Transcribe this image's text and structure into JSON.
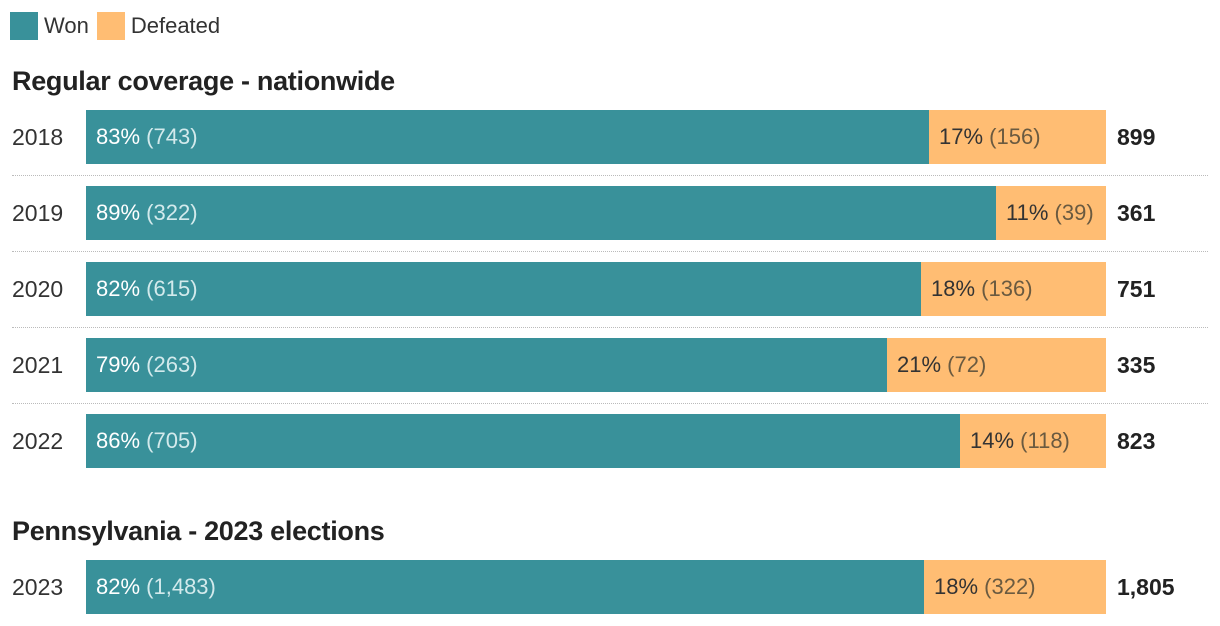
{
  "legend": [
    {
      "label": "Won",
      "color": "#39919a"
    },
    {
      "label": "Defeated",
      "color": "#ffbd73"
    }
  ],
  "chart_data": [
    {
      "type": "bar",
      "stacked": true,
      "orientation": "horizontal",
      "title": "Regular coverage - nationwide",
      "categories": [
        "2018",
        "2019",
        "2020",
        "2021",
        "2022"
      ],
      "series": [
        {
          "name": "Won",
          "percent_labels": [
            "83%",
            "89%",
            "82%",
            "79%",
            "86%"
          ],
          "counts": [
            743,
            322,
            615,
            263,
            705
          ],
          "count_labels": [
            "(743)",
            "(322)",
            "(615)",
            "(263)",
            "(705)"
          ]
        },
        {
          "name": "Defeated",
          "percent_labels": [
            "17%",
            "11%",
            "18%",
            "21%",
            "14%"
          ],
          "counts": [
            156,
            39,
            136,
            72,
            118
          ],
          "count_labels": [
            "(156)",
            "(39)",
            "(136)",
            "(72)",
            "(118)"
          ]
        }
      ],
      "totals": [
        "899",
        "361",
        "751",
        "335",
        "823"
      ]
    },
    {
      "type": "bar",
      "stacked": true,
      "orientation": "horizontal",
      "title": "Pennsylvania - 2023 elections",
      "categories": [
        "2023"
      ],
      "series": [
        {
          "name": "Won",
          "percent_labels": [
            "82%"
          ],
          "counts": [
            1483
          ],
          "count_labels": [
            "(1,483)"
          ]
        },
        {
          "name": "Defeated",
          "percent_labels": [
            "18%"
          ],
          "counts": [
            322
          ],
          "count_labels": [
            "(322)"
          ]
        }
      ],
      "totals": [
        "1,805"
      ]
    }
  ]
}
